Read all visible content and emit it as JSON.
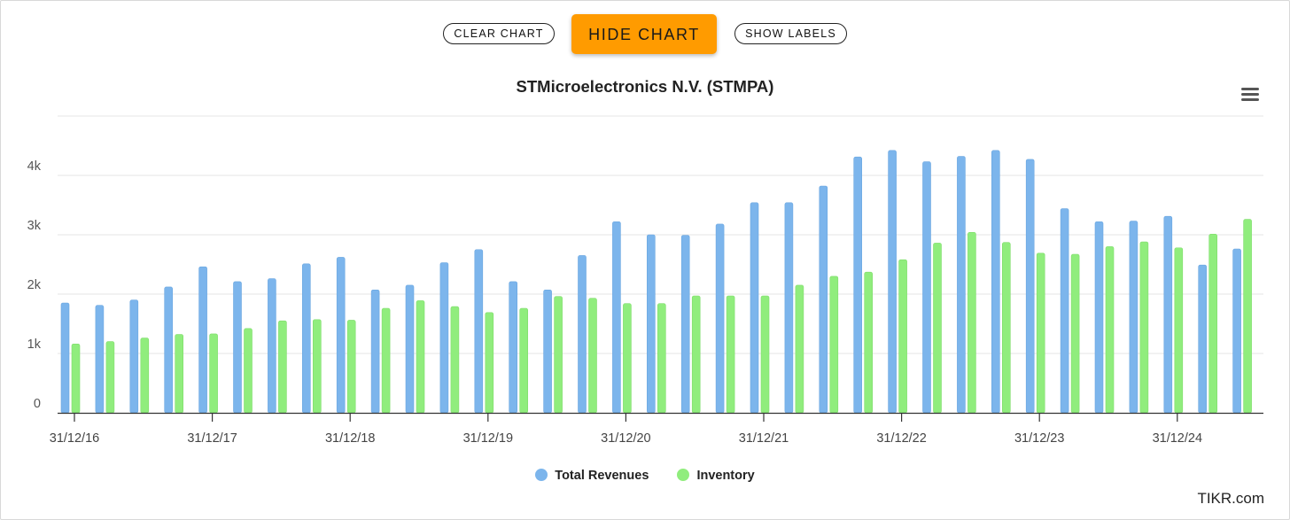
{
  "controls": {
    "clear_label": "CLEAR CHART",
    "hide_label": "HIDE CHART",
    "labels_label": "SHOW LABELS"
  },
  "colors": {
    "accent": "#ff9b00",
    "revenue": "#7cb5ec",
    "inventory": "#90ed7d",
    "grid": "#e6e6e6",
    "axis": "#333333"
  },
  "credit": "TIKR.com",
  "chart_data": {
    "type": "bar",
    "title": "STMicroelectronics N.V. (STMPA)",
    "xlabel": "",
    "ylabel": "",
    "ylim": [
      0,
      5000
    ],
    "y_ticks": [
      {
        "value": 0,
        "label": "0"
      },
      {
        "value": 1000,
        "label": "1k"
      },
      {
        "value": 2000,
        "label": "2k"
      },
      {
        "value": 3000,
        "label": "3k"
      },
      {
        "value": 4000,
        "label": "4k"
      }
    ],
    "x_tick_labels": [
      {
        "index": 0,
        "label": "31/12/16"
      },
      {
        "index": 4,
        "label": "31/12/17"
      },
      {
        "index": 8,
        "label": "31/12/18"
      },
      {
        "index": 12,
        "label": "31/12/19"
      },
      {
        "index": 16,
        "label": "31/12/20"
      },
      {
        "index": 20,
        "label": "31/12/21"
      },
      {
        "index": 24,
        "label": "31/12/22"
      },
      {
        "index": 28,
        "label": "31/12/23"
      },
      {
        "index": 32,
        "label": "31/12/24"
      }
    ],
    "legend_position": "bottom-center",
    "series": [
      {
        "name": "Total Revenues",
        "color": "#7cb5ec",
        "values": [
          1850,
          1810,
          1900,
          2120,
          2460,
          2210,
          2260,
          2510,
          2620,
          2070,
          2150,
          2530,
          2750,
          2210,
          2070,
          2650,
          3220,
          3000,
          2990,
          3180,
          3540,
          3540,
          3820,
          4310,
          4420,
          4230,
          4320,
          4420,
          4270,
          3440,
          3220,
          3230,
          3310,
          2490,
          2760
        ]
      },
      {
        "name": "Inventory",
        "color": "#90ed7d",
        "values": [
          1160,
          1200,
          1260,
          1320,
          1330,
          1420,
          1550,
          1570,
          1560,
          1760,
          1890,
          1790,
          1690,
          1760,
          1960,
          1930,
          1840,
          1840,
          1970,
          1970,
          1970,
          2150,
          2300,
          2370,
          2580,
          2860,
          3040,
          2870,
          2690,
          2670,
          2800,
          2880,
          2780,
          3010,
          3260
        ]
      }
    ]
  }
}
